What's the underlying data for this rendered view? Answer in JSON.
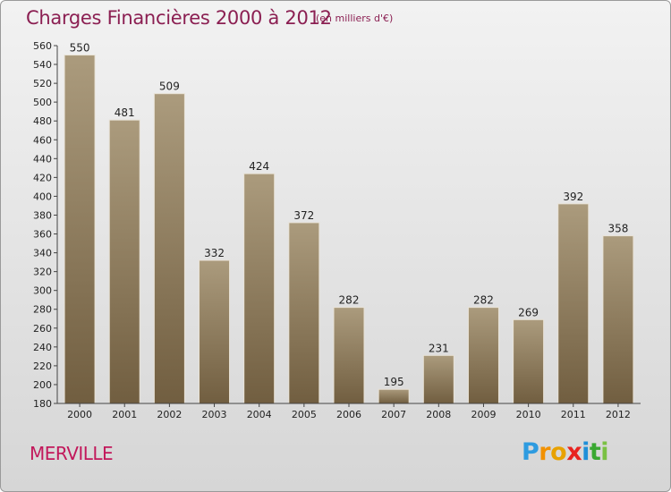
{
  "title": "Charges Financières 2000 à 2012",
  "subtitle": "(en milliers d'€)",
  "city": "MERVILLE",
  "logo": {
    "text": "Proxiti",
    "letters": [
      {
        "ch": "P",
        "color": "#2e9be0"
      },
      {
        "ch": "r",
        "color": "#f29100"
      },
      {
        "ch": "o",
        "color": "#e8a200"
      },
      {
        "ch": "x",
        "color": "#e8231f"
      },
      {
        "ch": "i",
        "color": "#1f8fd8"
      },
      {
        "ch": "t",
        "color": "#3aa832"
      },
      {
        "ch": "i",
        "color": "#7ac143"
      }
    ]
  },
  "colors": {
    "bar_top": "#ab9b7d",
    "bar_bottom": "#715e40",
    "title": "#8b1f52",
    "city": "#c2185b"
  },
  "chart_data": {
    "type": "bar",
    "categories": [
      "2000",
      "2001",
      "2002",
      "2003",
      "2004",
      "2005",
      "2006",
      "2007",
      "2008",
      "2009",
      "2010",
      "2011",
      "2012"
    ],
    "values": [
      550,
      481,
      509,
      332,
      424,
      372,
      282,
      195,
      231,
      282,
      269,
      392,
      358
    ],
    "ylim": [
      180,
      560
    ],
    "yticks": [
      180,
      200,
      220,
      240,
      260,
      280,
      300,
      320,
      340,
      360,
      380,
      400,
      420,
      440,
      460,
      480,
      500,
      520,
      540,
      560
    ],
    "grid": false,
    "data_labels": true
  }
}
